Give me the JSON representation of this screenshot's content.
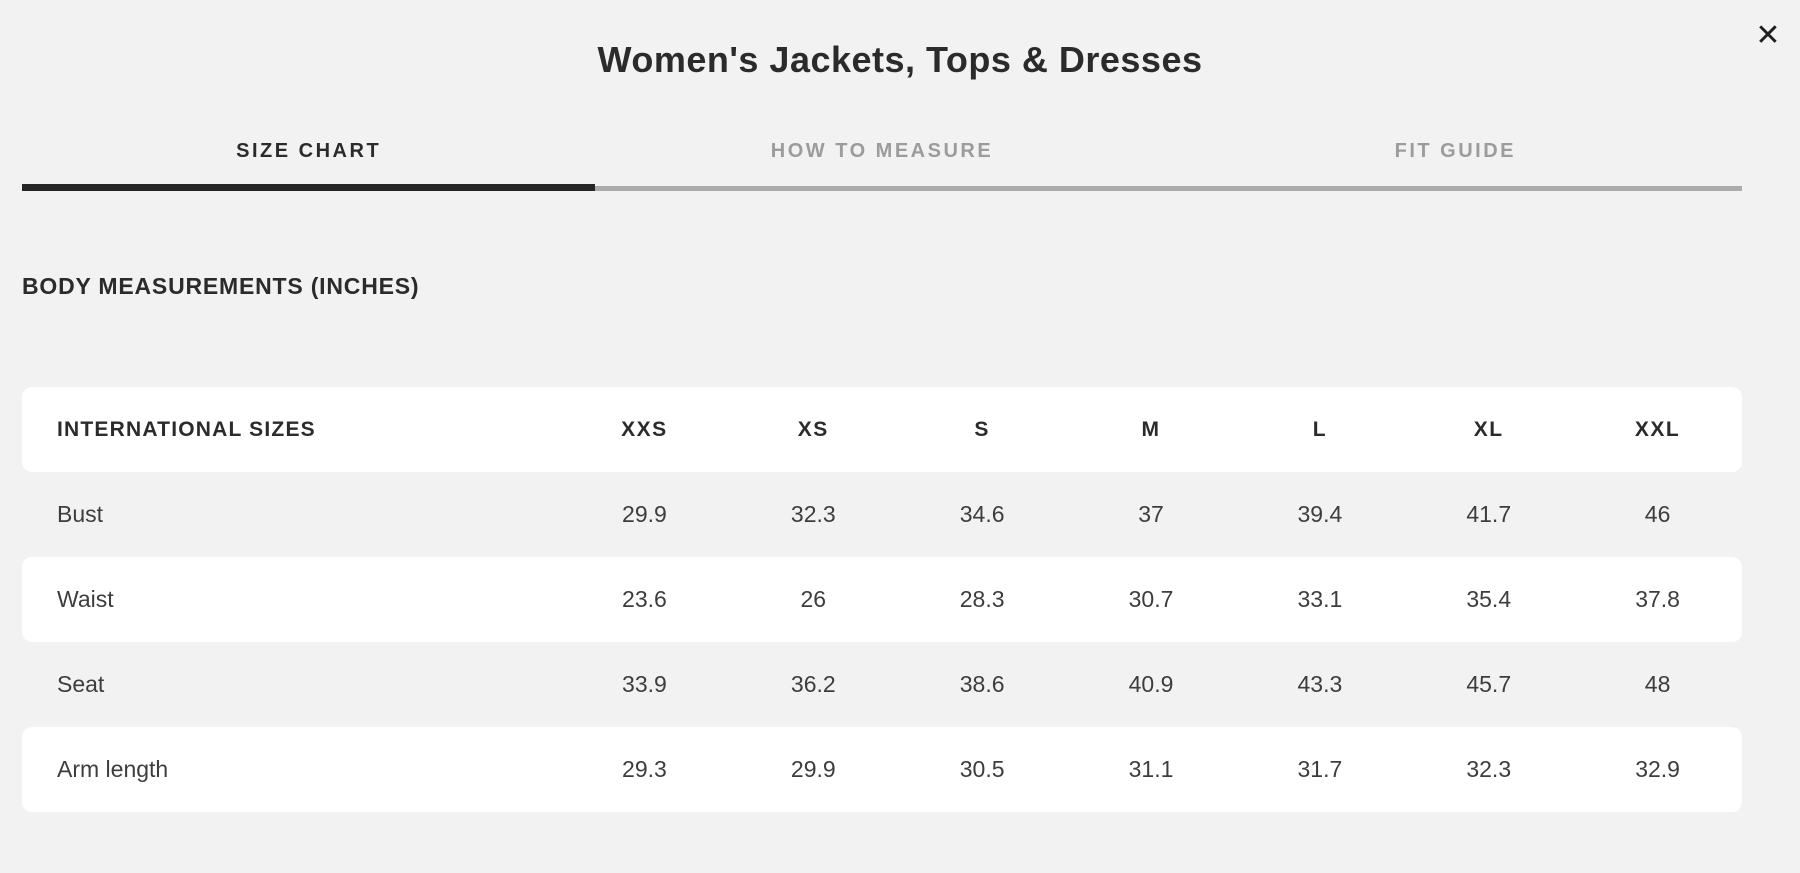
{
  "modal": {
    "title": "Women's Jackets, Tops & Dresses",
    "close_icon": "✕"
  },
  "tabs": [
    {
      "label": "SIZE CHART",
      "active": true
    },
    {
      "label": "HOW TO MEASURE",
      "active": false
    },
    {
      "label": "FIT GUIDE",
      "active": false
    }
  ],
  "section": {
    "heading": "BODY MEASUREMENTS (INCHES)"
  },
  "table": {
    "header": [
      "INTERNATIONAL SIZES",
      "XXS",
      "XS",
      "S",
      "M",
      "L",
      "XL",
      "XXL"
    ],
    "rows": [
      {
        "label": "Bust",
        "values": [
          "29.9",
          "32.3",
          "34.6",
          "37",
          "39.4",
          "41.7",
          "46"
        ]
      },
      {
        "label": "Waist",
        "values": [
          "23.6",
          "26",
          "28.3",
          "30.7",
          "33.1",
          "35.4",
          "37.8"
        ]
      },
      {
        "label": "Seat",
        "values": [
          "33.9",
          "36.2",
          "38.6",
          "40.9",
          "43.3",
          "45.7",
          "48"
        ]
      },
      {
        "label": "Arm length",
        "values": [
          "29.3",
          "29.9",
          "30.5",
          "31.1",
          "31.7",
          "32.3",
          "32.9"
        ]
      }
    ]
  },
  "colors": {
    "background": "#f2f2f2",
    "row_white": "#ffffff",
    "text_dark": "#2b2b2b",
    "tab_inactive": "#9c9c9c",
    "tab_track": "#ababab",
    "tab_indicator": "#262626",
    "value_text": "#3d3d3d"
  }
}
